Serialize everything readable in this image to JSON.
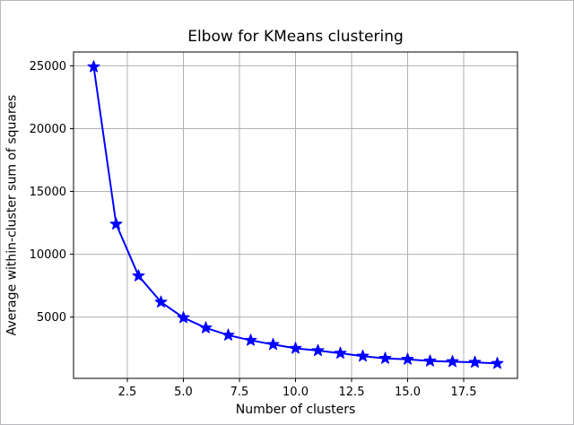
{
  "chart_data": {
    "type": "line",
    "title": "Elbow for KMeans clustering",
    "xlabel": "Number of clusters",
    "ylabel": "Average within-cluster sum of squares",
    "series": [
      {
        "name": "average-within-cluster-sum-of-squares",
        "x": [
          1,
          2,
          3,
          4,
          5,
          6,
          7,
          8,
          9,
          10,
          11,
          12,
          13,
          14,
          15,
          16,
          17,
          18,
          19
        ],
        "y": [
          24920,
          12400,
          8280,
          6190,
          4950,
          4140,
          3560,
          3150,
          2820,
          2510,
          2330,
          2120,
          1890,
          1710,
          1640,
          1500,
          1450,
          1400,
          1310
        ]
      }
    ],
    "marker": "star",
    "line_color": "#0000ff",
    "marker_color": "#0000ff",
    "grid": true,
    "grid_color": "#b0b0b0",
    "spine_color": "#000000",
    "text_color": "#000000",
    "background_color": "#ffffff",
    "xlim": [
      0.1,
      19.9
    ],
    "ylim": [
      120,
      26100
    ],
    "xticks": [
      2.5,
      5.0,
      7.5,
      10.0,
      12.5,
      15.0,
      17.5
    ],
    "xtick_labels": [
      "2.5",
      "5.0",
      "7.5",
      "10.0",
      "12.5",
      "15.0",
      "17.5"
    ],
    "yticks": [
      5000,
      10000,
      15000,
      20000,
      25000
    ],
    "ytick_labels": [
      "5000",
      "10000",
      "15000",
      "20000",
      "25000"
    ],
    "legend": null
  }
}
